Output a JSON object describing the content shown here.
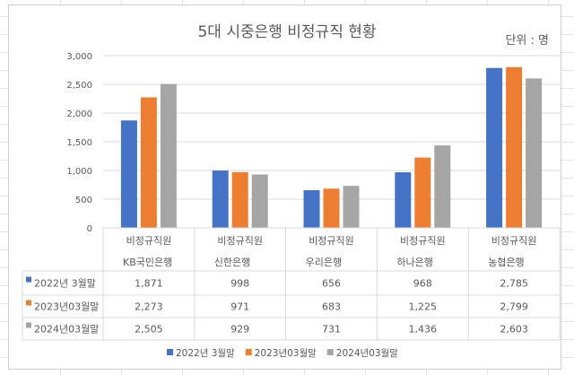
{
  "chart_data": {
    "type": "bar",
    "title": "5대 시중은행 비정규직 현황",
    "unit_label": "단위 : 명",
    "categories": [
      {
        "line1": "비정규직원",
        "line2": "KB국민은행"
      },
      {
        "line1": "비정규직원",
        "line2": "신한은행"
      },
      {
        "line1": "비정규직원",
        "line2": "우리은행"
      },
      {
        "line1": "비정규직원",
        "line2": "하나은행"
      },
      {
        "line1": "비정규직원",
        "line2": "농협은행"
      }
    ],
    "series": [
      {
        "name": "2022년 3월말",
        "color": "#4472c4",
        "values": [
          1871,
          998,
          656,
          968,
          2785
        ],
        "labels": [
          "1,871",
          "998",
          "656",
          "968",
          "2,785"
        ]
      },
      {
        "name": "2023년03월말",
        "color": "#ed7d31",
        "values": [
          2273,
          971,
          683,
          1225,
          2799
        ],
        "labels": [
          "2,273",
          "971",
          "683",
          "1,225",
          "2,799"
        ]
      },
      {
        "name": "2024년03월말",
        "color": "#a5a5a5",
        "values": [
          2505,
          929,
          731,
          1436,
          2603
        ],
        "labels": [
          "2,505",
          "929",
          "731",
          "1,436",
          "2,603"
        ]
      }
    ],
    "ylim": [
      0,
      3000
    ],
    "yticks": [
      0,
      500,
      1000,
      1500,
      2000,
      2500,
      3000
    ],
    "ytick_labels": [
      "0",
      "500",
      "1,000",
      "1,500",
      "2,000",
      "2,500",
      "3,000"
    ],
    "grid": true,
    "legend": "bottom",
    "data_table": true
  }
}
